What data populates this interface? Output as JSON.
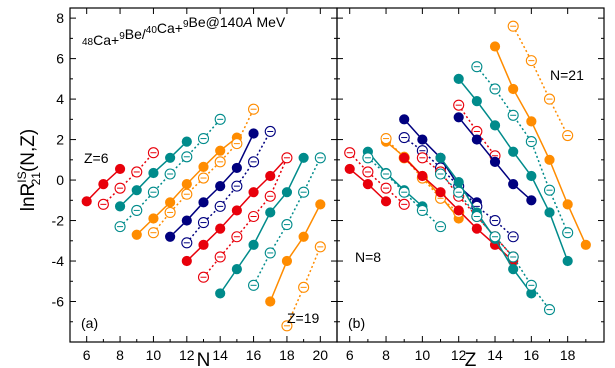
{
  "chart_data": [
    {
      "type": "scatter",
      "panel_label": "(a)",
      "title": "48Ca+9Be/40Ca+9Be@140A MeV",
      "xlabel": "N",
      "ylabel": "lnR21IS(N,Z)",
      "xlim": [
        5,
        21
      ],
      "ylim": [
        -8,
        8.5
      ],
      "xticks": [
        6,
        8,
        10,
        12,
        14,
        16,
        18,
        20
      ],
      "yticks": [
        -6,
        -4,
        -2,
        0,
        2,
        4,
        6,
        8
      ],
      "grid": false,
      "annotations": [
        "Z=6",
        "Z=19"
      ],
      "series": [
        {
          "z": 6,
          "color": "#e8000b",
          "filled": true,
          "x": [
            6,
            7,
            8
          ],
          "y": [
            -1.05,
            -0.2,
            0.55
          ]
        },
        {
          "z": 7,
          "color": "#e8000b",
          "filled": false,
          "x": [
            7,
            8,
            9,
            10
          ],
          "y": [
            -1.2,
            -0.4,
            0.4,
            1.35
          ]
        },
        {
          "z": 8,
          "color": "#008b8b",
          "filled": true,
          "x": [
            8,
            9,
            10,
            11,
            12
          ],
          "y": [
            -1.3,
            -0.5,
            0.35,
            1.1,
            1.9
          ]
        },
        {
          "z": 9,
          "color": "#008b8b",
          "filled": false,
          "x": [
            8,
            9,
            10,
            11,
            12,
            13,
            14
          ],
          "y": [
            -2.3,
            -1.5,
            -0.6,
            0.3,
            1.15,
            2.05,
            3.0
          ]
        },
        {
          "z": 10,
          "color": "#ff8c00",
          "filled": true,
          "x": [
            9,
            10,
            11,
            12,
            13,
            14,
            15
          ],
          "y": [
            -2.7,
            -1.9,
            -1.1,
            -0.2,
            0.65,
            1.45,
            2.1
          ]
        },
        {
          "z": 11,
          "color": "#ff8c00",
          "filled": false,
          "x": [
            10,
            11,
            12,
            13,
            14,
            15,
            16
          ],
          "y": [
            -2.6,
            -1.6,
            -0.7,
            0.1,
            0.9,
            1.8,
            3.5
          ]
        },
        {
          "z": 12,
          "color": "#00007f",
          "filled": true,
          "x": [
            11,
            12,
            13,
            14,
            15,
            16
          ],
          "y": [
            -2.8,
            -2.0,
            -1.1,
            -0.3,
            0.6,
            2.3
          ]
        },
        {
          "z": 13,
          "color": "#00007f",
          "filled": false,
          "x": [
            12,
            13,
            14,
            15,
            16,
            17
          ],
          "y": [
            -3.1,
            -2.1,
            -1.3,
            -0.3,
            0.9,
            2.4
          ]
        },
        {
          "z": 14,
          "color": "#e8000b",
          "filled": true,
          "x": [
            12,
            13,
            14,
            15,
            16,
            17,
            18
          ],
          "y": [
            -4.0,
            -3.2,
            -2.4,
            -1.5,
            -0.6,
            0.2,
            1.1
          ]
        },
        {
          "z": 15,
          "color": "#e8000b",
          "filled": false,
          "x": [
            13,
            14,
            15,
            16,
            17,
            18
          ],
          "y": [
            -4.8,
            -3.8,
            -2.8,
            -1.8,
            -0.8,
            1.1
          ]
        },
        {
          "z": 16,
          "color": "#008b8b",
          "filled": true,
          "x": [
            14,
            15,
            16,
            17,
            18,
            19
          ],
          "y": [
            -5.6,
            -4.4,
            -3.2,
            -1.6,
            -0.6,
            1.1
          ]
        },
        {
          "z": 17,
          "color": "#008b8b",
          "filled": false,
          "x": [
            16,
            17,
            18,
            19,
            20
          ],
          "y": [
            -5.2,
            -3.6,
            -2.2,
            -0.6,
            1.1
          ]
        },
        {
          "z": 18,
          "color": "#ff8c00",
          "filled": true,
          "x": [
            17,
            18,
            19,
            20
          ],
          "y": [
            -6.0,
            -4.0,
            -2.8,
            -1.2
          ]
        },
        {
          "z": 19,
          "color": "#ff8c00",
          "filled": false,
          "x": [
            18,
            19,
            20
          ],
          "y": [
            -7.2,
            -5.3,
            -3.3
          ]
        }
      ]
    },
    {
      "type": "scatter",
      "panel_label": "(b)",
      "xlabel": "Z",
      "xlim": [
        5.3,
        20
      ],
      "ylim": [
        -8,
        8.5
      ],
      "xticks": [
        6,
        8,
        10,
        12,
        14,
        16,
        18
      ],
      "grid": false,
      "annotations": [
        "N=8",
        "N=21"
      ],
      "series": [
        {
          "n": 8,
          "color": "#e8000b",
          "filled": true,
          "x": [
            6,
            7,
            8
          ],
          "y": [
            0.55,
            -0.2,
            -1.05
          ]
        },
        {
          "n": 9,
          "color": "#e8000b",
          "filled": false,
          "x": [
            6,
            7,
            8,
            9
          ],
          "y": [
            1.35,
            0.4,
            -0.4,
            -1.2
          ]
        },
        {
          "n": 10,
          "color": "#008b8b",
          "filled": true,
          "x": [
            7,
            8,
            9,
            10
          ],
          "y": [
            1.4,
            0.35,
            -0.5,
            -1.3
          ]
        },
        {
          "n": 11,
          "color": "#008b8b",
          "filled": false,
          "x": [
            7,
            8,
            9,
            10,
            11
          ],
          "y": [
            1.1,
            0.3,
            -0.6,
            -1.5,
            -2.3
          ]
        },
        {
          "n": 12,
          "color": "#ff8c00",
          "filled": true,
          "x": [
            8,
            9,
            10,
            11,
            12
          ],
          "y": [
            1.9,
            1.15,
            0.2,
            -0.8,
            -1.9
          ]
        },
        {
          "n": 13,
          "color": "#ff8c00",
          "filled": false,
          "x": [
            8,
            9,
            10,
            11,
            12
          ],
          "y": [
            2.05,
            1.1,
            0.1,
            -0.9,
            -1.6
          ]
        },
        {
          "n": 14,
          "color": "#00007f",
          "filled": true,
          "x": [
            9,
            10,
            11,
            12,
            13
          ],
          "y": [
            3.0,
            2.0,
            1.1,
            -0.3,
            -1.1
          ]
        },
        {
          "n": 15,
          "color": "#00007f",
          "filled": false,
          "x": [
            9,
            10,
            11,
            12,
            13,
            14,
            15
          ],
          "y": [
            2.1,
            1.45,
            0.6,
            -0.3,
            -1.3,
            -2.0,
            -2.8
          ]
        },
        {
          "n": 16,
          "color": "#e8000b",
          "filled": true,
          "x": [
            9,
            10,
            11,
            12,
            13,
            14,
            15
          ],
          "y": [
            1.1,
            0.2,
            -0.6,
            -1.5,
            -2.4,
            -3.2,
            -4.0
          ]
        },
        {
          "n": 17,
          "color": "#e8000b",
          "filled": false,
          "x": [
            10,
            11,
            12,
            13,
            14,
            15
          ],
          "y": [
            1.1,
            0.4,
            -0.8,
            -1.8,
            -2.8,
            -3.8
          ]
        },
        {
          "n": 18,
          "color": "#008b8b",
          "filled": true,
          "x": [
            11,
            12,
            13,
            14,
            15,
            16
          ],
          "y": [
            1.1,
            -0.1,
            -1.6,
            -2.9,
            -4.4,
            -5.6
          ]
        },
        {
          "n": 19,
          "color": "#008b8b",
          "filled": false,
          "x": [
            11,
            12,
            13,
            14,
            15,
            16,
            17
          ],
          "y": [
            0.3,
            -0.6,
            -1.8,
            -2.8,
            -3.8,
            -5.2,
            -6.4
          ]
        },
        {
          "n": 20,
          "color": "#008b8b",
          "filled": true,
          "x": [
            12,
            13,
            14,
            15,
            16,
            17,
            18
          ],
          "y": [
            5.0,
            3.9,
            2.7,
            1.4,
            0.2,
            -1.6,
            -4.0
          ]
        },
        {
          "n": 20,
          "color": "#e8000b",
          "filled": false,
          "x": [
            12,
            13,
            14
          ],
          "y": [
            3.7,
            2.4,
            1.2
          ]
        },
        {
          "n": 21,
          "color": "#ff8c00",
          "filled": true,
          "x": [
            14,
            15,
            16,
            17,
            18,
            19
          ],
          "y": [
            6.6,
            4.5,
            2.9,
            1.0,
            -1.2,
            -3.2
          ]
        },
        {
          "n": 21,
          "color": "#ff8c00",
          "filled": false,
          "x": [
            15,
            16,
            17,
            18
          ],
          "y": [
            7.6,
            5.9,
            4.0,
            2.2
          ]
        },
        {
          "n": 20,
          "color": "#008b8b",
          "filled": false,
          "x": [
            13,
            14,
            15,
            16,
            17,
            18
          ],
          "y": [
            5.6,
            4.5,
            3.2,
            1.9,
            -0.5,
            -2.6
          ]
        },
        {
          "n": 19,
          "color": "#00007f",
          "filled": true,
          "x": [
            12,
            13,
            14,
            15,
            16
          ],
          "y": [
            3.1,
            2.0,
            0.9,
            -0.2,
            -1.0
          ]
        }
      ]
    }
  ]
}
